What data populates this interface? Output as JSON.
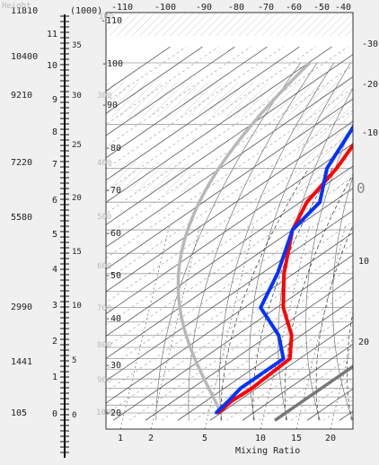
{
  "chart_data": {
    "type": "line",
    "title": "",
    "left_axis": {
      "height_title": "Height",
      "km_title": "(1000)",
      "height_labels": [
        "11810",
        "10400",
        "9210",
        "7220",
        "5580",
        "2990",
        "1441",
        "105"
      ],
      "km_labels": [
        "0",
        "1",
        "2",
        "3",
        "4",
        "5",
        "6",
        "7",
        "8",
        "9",
        "10",
        "11"
      ],
      "kft_labels": [
        "0",
        "5",
        "10",
        "15",
        "20",
        "25",
        "30",
        "35"
      ]
    },
    "top_axis": {
      "temperature_labels": [
        "-110",
        "-100",
        "-90",
        "-80",
        "-70",
        "-60",
        "-50",
        "-40"
      ]
    },
    "bottom_axis": {
      "title": "Mixing Ratio",
      "mixing_ratio_labels": [
        "1",
        "2",
        "5",
        "10",
        "15",
        "20"
      ]
    },
    "inner_labels": {
      "pressure_labels": [
        "100",
        "300",
        "400",
        "500",
        "600",
        "700",
        "800",
        "900",
        "1000"
      ],
      "isotherm_labels": [
        "-110",
        "-100",
        "-90",
        "-80",
        "-70",
        "-60",
        "-50",
        "-40",
        "-30",
        "-20"
      ]
    },
    "right_axis": {
      "temperature_labels": [
        "-30",
        "-20",
        "-10",
        "0",
        "10",
        "20"
      ]
    },
    "series": [
      {
        "key": "temperature",
        "color": "#ff0000",
        "points": [
          {
            "p": 1000,
            "t": -20.8
          },
          {
            "p": 925,
            "t": -22
          },
          {
            "p": 850,
            "t": -21.5
          },
          {
            "p": 700,
            "t": -23
          },
          {
            "p": 600,
            "t": -33
          },
          {
            "p": 500,
            "t": -48
          },
          {
            "p": 400,
            "t": -63
          },
          {
            "p": 300,
            "t": -80
          },
          {
            "p": 250,
            "t": -88
          },
          {
            "p": 200,
            "t": -94
          },
          {
            "p": 150,
            "t": -104
          },
          {
            "p": 100,
            "t": -123
          }
        ]
      },
      {
        "key": "dewpoint",
        "color": "#0033ff",
        "points": [
          {
            "p": 1000,
            "t": -21.5
          },
          {
            "p": 925,
            "t": -23
          },
          {
            "p": 850,
            "t": -25
          },
          {
            "p": 700,
            "t": -25
          },
          {
            "p": 600,
            "t": -37
          },
          {
            "p": 500,
            "t": -55
          },
          {
            "p": 400,
            "t": -65
          },
          {
            "p": 300,
            "t": -80
          },
          {
            "p": 250,
            "t": -84
          },
          {
            "p": 200,
            "t": -97
          },
          {
            "p": 150,
            "t": -108
          },
          {
            "p": 100,
            "t": -132
          }
        ]
      }
    ],
    "reference_curves": {
      "freezing_isotherm_color": "#777777",
      "moist_adiabat_color": "#b8b8b8"
    }
  }
}
